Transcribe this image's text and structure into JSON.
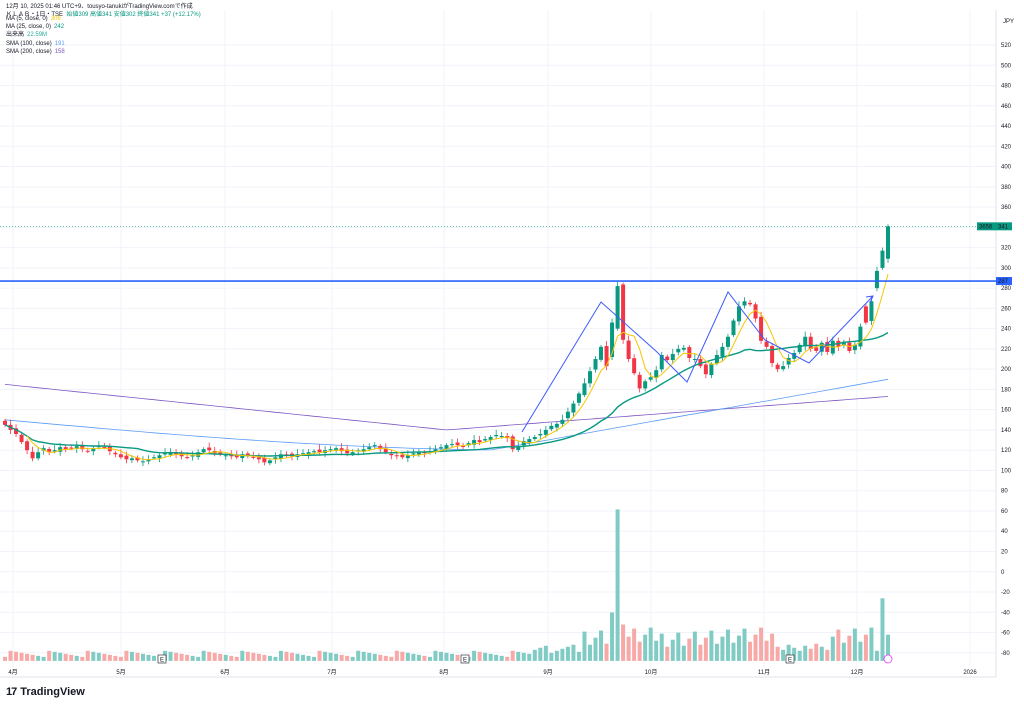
{
  "header": {
    "snapshot": "12月 10, 2025 01:46 UTC+9、tousyo-tanukiがTradingView.comで作成",
    "symbol": "ＫＬＡＢ・1日・TSE",
    "ohlc": "始値309 高値341 安値302 終値341 +37 (+12.17%)"
  },
  "legend": [
    {
      "label": "MA (5, close, 0)",
      "value": "306",
      "color": "#f7c600"
    },
    {
      "label": "MA (25, close, 0)",
      "value": "242",
      "color": "#089981"
    },
    {
      "label": "出来高",
      "value": "22.59M",
      "color": "#26a69a"
    },
    {
      "label": "SMA (100, close)",
      "value": "191",
      "color": "#5b9cf6"
    },
    {
      "label": "SMA (200, close)",
      "value": "158",
      "color": "#7e57c2"
    }
  ],
  "brand": {
    "name": "TradingView",
    "logo": "17"
  },
  "chart_data": {
    "type": "candlestick",
    "currency": "JPY",
    "y_ticks": [
      520,
      500,
      480,
      460,
      440,
      420,
      400,
      380,
      360,
      340,
      320,
      300,
      280,
      260,
      240,
      220,
      200,
      180,
      160,
      140,
      120,
      100,
      80,
      60,
      40,
      20,
      0,
      -20,
      -40,
      -60,
      -80
    ],
    "x_ticks": [
      "4月",
      "5月",
      "6月",
      "7月",
      "8月",
      "9月",
      "10月",
      "11月",
      "12月",
      "2026"
    ],
    "price_labels": {
      "last_volume": "3656",
      "last_price": "341",
      "resistance": "287"
    },
    "resistance_level": 287,
    "colors": {
      "up": "#089981",
      "down": "#f23645",
      "vol_up": "#80cbc4",
      "vol_down": "#f7a9a7",
      "resistance": "#2962ff",
      "pattern": "#3d5afe"
    },
    "closes": [
      145,
      140,
      136,
      128,
      120,
      112,
      118,
      122,
      118,
      120,
      123,
      121,
      122,
      124,
      121,
      119,
      122,
      124,
      123,
      119,
      116,
      113,
      111,
      112,
      110,
      109,
      111,
      113,
      115,
      117,
      118,
      116,
      114,
      113,
      115,
      118,
      121,
      120,
      117,
      116,
      115,
      114,
      113,
      116,
      115,
      113,
      111,
      108,
      110,
      113,
      116,
      115,
      114,
      116,
      117,
      118,
      119,
      118,
      120,
      121,
      122,
      119,
      117,
      118,
      120,
      121,
      123,
      125,
      121,
      118,
      115,
      114,
      113,
      115,
      117,
      118,
      117,
      119,
      121,
      123,
      125,
      126,
      125,
      124,
      127,
      130,
      128,
      131,
      133,
      135,
      134,
      132,
      121,
      124,
      129,
      131,
      133,
      136,
      140,
      144,
      146,
      150,
      158,
      166,
      176,
      186,
      198,
      210,
      222,
      203,
      246,
      282,
      229,
      210,
      196,
      181,
      188,
      192,
      199,
      214,
      209,
      215,
      220,
      221,
      211,
      210,
      203,
      195,
      205,
      214,
      222,
      232,
      248,
      262,
      267,
      264,
      250,
      228,
      222,
      206,
      200,
      203,
      211,
      216,
      224,
      232,
      220,
      218,
      226,
      217,
      228,
      222,
      227,
      218,
      224,
      242,
      246,
      267,
      297,
      317,
      341
    ],
    "volume_spikes": {
      "max_index": 111,
      "max_value": "68.5"
    },
    "annotations": [
      "E",
      "E",
      "E"
    ]
  }
}
